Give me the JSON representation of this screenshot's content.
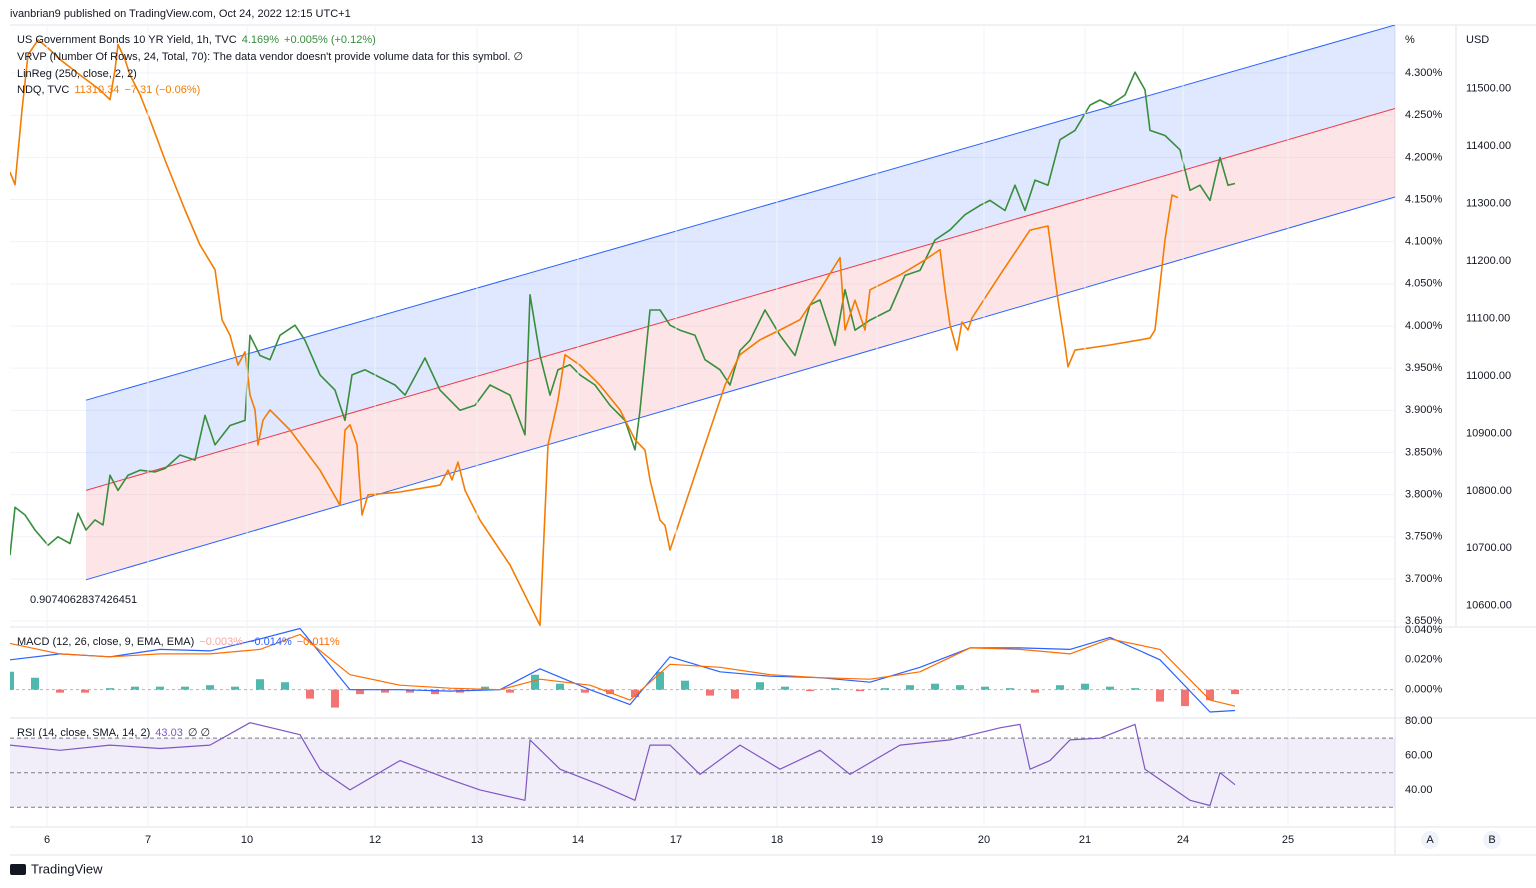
{
  "header": "ivanbrian9 published on TradingView.com, Oct 24, 2022 12:15 UTC+1",
  "footer": "TradingView",
  "buttons": [
    "A",
    "B"
  ],
  "chart_data": [
    {
      "type": "line",
      "xlim": [
        0,
        138.5
      ],
      "xticks": [
        {
          "value": 3.7,
          "label": "6"
        },
        {
          "value": 13.8,
          "label": "7"
        },
        {
          "value": 23.7,
          "label": "10"
        },
        {
          "value": 36.5,
          "label": "12"
        },
        {
          "value": 46.7,
          "label": "13"
        },
        {
          "value": 56.8,
          "label": "14"
        },
        {
          "value": 66.6,
          "label": "17"
        },
        {
          "value": 76.7,
          "label": "18"
        },
        {
          "value": 86.7,
          "label": "19"
        },
        {
          "value": 97.4,
          "label": "20"
        },
        {
          "value": 107.5,
          "label": "21"
        },
        {
          "value": 117.3,
          "label": "24"
        },
        {
          "value": 127.8,
          "label": "25"
        }
      ],
      "ylabel": "%",
      "ylim": [
        3.643,
        4.357
      ],
      "yticks": [
        {
          "value": 3.65,
          "label": "3.650%"
        },
        {
          "value": 3.7,
          "label": "3.700%"
        },
        {
          "value": 3.75,
          "label": "3.750%"
        },
        {
          "value": 3.8,
          "label": "3.800%"
        },
        {
          "value": 3.85,
          "label": "3.850%"
        },
        {
          "value": 3.9,
          "label": "3.900%"
        },
        {
          "value": 3.95,
          "label": "3.950%"
        },
        {
          "value": 4.0,
          "label": "4.000%"
        },
        {
          "value": 4.05,
          "label": "4.050%"
        },
        {
          "value": 4.1,
          "label": "4.100%"
        },
        {
          "value": 4.15,
          "label": "4.150%"
        },
        {
          "value": 4.2,
          "label": "4.200%"
        },
        {
          "value": 4.25,
          "label": "4.250%"
        },
        {
          "value": 4.3,
          "label": "4.300%"
        }
      ],
      "y2label": "USD",
      "y2lim": [
        10563,
        11611
      ],
      "y2ticks": [
        {
          "value": 10600,
          "label": "10600.00"
        },
        {
          "value": 10700,
          "label": "10700.00"
        },
        {
          "value": 10800,
          "label": "10800.00"
        },
        {
          "value": 10900,
          "label": "10900.00"
        },
        {
          "value": 11000,
          "label": "11000.00"
        },
        {
          "value": 11100,
          "label": "11100.00"
        },
        {
          "value": 11200,
          "label": "11200.00"
        },
        {
          "value": 11300,
          "label": "11300.00"
        },
        {
          "value": 11400,
          "label": "11400.00"
        },
        {
          "value": 11500,
          "label": "11500.00"
        }
      ],
      "grid": true,
      "annotations": [
        "VRVP (Number Of Rows, 24, Total, 70): The data vendor doesn't provide volume data for this symbol.  ∅",
        "0.9074062837426451"
      ],
      "regression": {
        "name": "LinReg (250, close, 2, 2)",
        "x": [
          7.6,
          138.5
        ],
        "upper": [
          3.912,
          4.357
        ],
        "middle": [
          3.805,
          4.258
        ],
        "lower": [
          3.699,
          4.153
        ],
        "band_color": "#2962ff",
        "mid_color": "#f23645"
      },
      "series": [
        {
          "name": "US Government Bonds 10 YR Yield, 1h, TVC",
          "last_label": "4.169%",
          "change_label": "+0.005% (+0.12%)",
          "color": "#388e3c",
          "axis": "y",
          "x": [
            0,
            0.5,
            1.5,
            2.5,
            3.8,
            4.8,
            6,
            6.8,
            7.6,
            8.5,
            9.3,
            10,
            10.8,
            11.8,
            13,
            14.5,
            15.5,
            17,
            18.5,
            19.5,
            20.5,
            22,
            23.5,
            24,
            25,
            26,
            27,
            28.5,
            29.5,
            31,
            32.5,
            33.5,
            34.2,
            35.5,
            36.5,
            37.5,
            38.5,
            39.5,
            41.5,
            43,
            45,
            46.5,
            48,
            50,
            51.5,
            52,
            53,
            54,
            54.8,
            56,
            57,
            58.5,
            60,
            61.5,
            62.5,
            63,
            64,
            65,
            66,
            67,
            68.5,
            69.5,
            71,
            72,
            73,
            74,
            75.5,
            77,
            78.5,
            80,
            81,
            82.5,
            83.5,
            84.5,
            86,
            88,
            89.5,
            91,
            92.5,
            94,
            95.5,
            97,
            98,
            99.5,
            100.5,
            101.5,
            102.5,
            103.8,
            105,
            106.5,
            108,
            109,
            110,
            111.5,
            112.5,
            113.5,
            114,
            115.5,
            117,
            118,
            119,
            120,
            121,
            121.8,
            122.5
          ],
          "values": [
            3.728,
            3.785,
            3.776,
            3.758,
            3.74,
            3.75,
            3.742,
            3.778,
            3.758,
            3.77,
            3.764,
            3.823,
            3.805,
            3.823,
            3.829,
            3.827,
            3.831,
            3.847,
            3.841,
            3.894,
            3.859,
            3.882,
            3.888,
            3.989,
            3.965,
            3.96,
            3.989,
            4.001,
            3.983,
            3.942,
            3.924,
            3.888,
            3.942,
            3.948,
            3.942,
            3.936,
            3.93,
            3.918,
            3.962,
            3.924,
            3.9,
            3.906,
            3.93,
            3.918,
            3.871,
            4.037,
            3.965,
            3.918,
            3.948,
            3.954,
            3.942,
            3.93,
            3.906,
            3.888,
            3.853,
            3.9,
            4.019,
            4.019,
            4.001,
            3.995,
            3.989,
            3.96,
            3.948,
            3.93,
            3.971,
            3.983,
            4.019,
            3.989,
            3.965,
            4.025,
            4.031,
            3.977,
            4.043,
            3.995,
            4.007,
            4.019,
            4.06,
            4.066,
            4.102,
            4.114,
            4.132,
            4.143,
            4.149,
            4.137,
            4.167,
            4.137,
            4.173,
            4.167,
            4.221,
            4.232,
            4.262,
            4.268,
            4.262,
            4.274,
            4.301,
            4.28,
            4.232,
            4.226,
            4.209,
            4.161,
            4.167,
            4.149,
            4.2,
            4.167,
            4.169
          ]
        },
        {
          "name": "NDQ, TVC",
          "last_label": "11310.34",
          "change_label": "−7.31 (−0.06%)",
          "color": "#f57c00",
          "axis": "y2",
          "x": [
            0,
            0.5,
            1.2,
            1.8,
            2.8,
            3.8,
            5,
            7,
            9,
            10,
            10.5,
            10.8,
            11.5,
            12,
            13,
            14,
            15.5,
            17.5,
            19,
            20.5,
            21.2,
            22,
            22.8,
            23.5,
            24,
            24.5,
            24.8,
            25.3,
            26,
            28,
            31,
            33,
            33.5,
            34,
            34.7,
            35.2,
            35.8,
            39,
            43,
            43.8,
            44.2,
            44.8,
            45.5,
            47,
            50,
            53,
            53.8,
            54.8,
            55.5,
            57,
            59,
            61,
            62.5,
            63.5,
            64,
            64.5,
            65,
            65.5,
            66,
            69,
            71.5,
            73,
            75,
            77,
            79,
            81,
            83,
            83.5,
            84.5,
            85.5,
            86,
            89,
            91.5,
            93,
            93.5,
            94,
            94.7,
            95.2,
            95.8,
            96.2,
            99,
            102,
            103.8,
            104.8,
            105.5,
            105.8,
            106.5,
            110,
            114,
            114.5,
            115.5,
            116.2,
            116.8
          ],
          "values": [
            11355,
            11333,
            11463,
            11559,
            11585,
            11571,
            11551,
            11524,
            11498,
            11481,
            11533,
            11577,
            11551,
            11524,
            11490,
            11446,
            11376,
            11289,
            11228,
            11185,
            11098,
            11071,
            11019,
            11042,
            10967,
            10941,
            10880,
            10923,
            10941,
            10906,
            10836,
            10775,
            10906,
            10915,
            10880,
            10758,
            10793,
            10798,
            10810,
            10836,
            10819,
            10850,
            10801,
            10749,
            10671,
            10566,
            10880,
            10958,
            11037,
            11019,
            10984,
            10941,
            10889,
            10871,
            10819,
            10784,
            10749,
            10740,
            10697,
            10854,
            10984,
            11037,
            11063,
            11080,
            11098,
            11150,
            11206,
            11080,
            11132,
            11080,
            11150,
            11176,
            11202,
            11220,
            11150,
            11089,
            11045,
            11094,
            11080,
            11101,
            11176,
            11254,
            11261,
            11132,
            11054,
            11016,
            11045,
            11054,
            11066,
            11080,
            11237,
            11315,
            11310.34
          ]
        }
      ]
    },
    {
      "type": "macd",
      "title": "MACD (12, 26, close, 9, EMA, EMA)",
      "xlim": [
        0,
        138.5
      ],
      "ylim": [
        -0.019,
        0.042
      ],
      "yticks": [
        {
          "value": 0,
          "label": "0.000%"
        },
        {
          "value": 0.02,
          "label": "0.020%"
        },
        {
          "value": 0.04,
          "label": "0.040%"
        }
      ],
      "histogram": {
        "value_label": "−0.003%",
        "label_color": "#f7a5a5",
        "up_color": "#26a69a",
        "down_color": "#ef5350",
        "x": [
          0,
          2.5,
          5,
          7.5,
          10,
          12.5,
          15,
          17.5,
          20,
          22.5,
          25,
          27.5,
          30,
          32.5,
          35,
          37.5,
          40,
          42.5,
          45,
          47.5,
          50,
          52.5,
          55,
          57.5,
          60,
          62.5,
          65,
          67.5,
          70,
          72.5,
          75,
          77.5,
          80,
          82.5,
          85,
          87.5,
          90,
          92.5,
          95,
          97.5,
          100,
          102.5,
          105,
          107.5,
          110,
          112.5,
          115,
          117.5,
          120,
          122.5
        ],
        "values": [
          0.012,
          0.008,
          -0.002,
          -0.002,
          0.001,
          0.002,
          0.002,
          0.002,
          0.003,
          0.002,
          0.007,
          0.005,
          -0.006,
          -0.012,
          -0.003,
          -0.002,
          -0.002,
          -0.003,
          -0.002,
          0.002,
          -0.002,
          0.01,
          0.004,
          -0.002,
          -0.003,
          -0.005,
          0.012,
          0.006,
          -0.004,
          -0.006,
          0.005,
          0.002,
          -0.001,
          0.001,
          -0.001,
          0.001,
          0.003,
          0.004,
          0.003,
          0.002,
          0.001,
          -0.002,
          0.003,
          0.004,
          0.002,
          0.001,
          -0.008,
          -0.011,
          -0.007,
          -0.003
        ]
      },
      "series": [
        {
          "value_label": "−0.014%",
          "color": "#2962ff",
          "x": [
            0,
            5,
            10,
            15,
            20,
            25,
            29,
            34,
            39,
            44,
            49,
            53,
            58,
            62,
            66,
            71,
            76,
            81,
            86,
            91,
            96,
            101,
            106,
            110,
            115,
            120,
            122.5
          ],
          "values": [
            0.02,
            0.024,
            0.022,
            0.027,
            0.026,
            0.034,
            0.041,
            0.0,
            0.0,
            -0.001,
            0,
            0.014,
            0,
            -0.01,
            0.022,
            0.012,
            0.009,
            0.008,
            0.005,
            0.015,
            0.028,
            0.028,
            0.027,
            0.035,
            0.02,
            -0.015,
            -0.014
          ]
        },
        {
          "value_label": "−0.011%",
          "color": "#ff6d00",
          "x": [
            0,
            5,
            10,
            15,
            20,
            25,
            29,
            34,
            39,
            44,
            49,
            53,
            58,
            62,
            66,
            71,
            76,
            81,
            86,
            91,
            96,
            101,
            106,
            110,
            115,
            120,
            122.5
          ],
          "values": [
            0.031,
            0.024,
            0.022,
            0.024,
            0.024,
            0.027,
            0.037,
            0.01,
            0.003,
            0.001,
            0,
            0.007,
            0.003,
            -0.007,
            0.017,
            0.015,
            0.01,
            0.008,
            0.007,
            0.012,
            0.028,
            0.027,
            0.024,
            0.034,
            0.027,
            -0.007,
            -0.011
          ]
        }
      ]
    },
    {
      "type": "rsi",
      "title": "RSI (14, close, SMA, 14, 2)",
      "status": "∅  ∅",
      "xlim": [
        0,
        138.5
      ],
      "ylim": [
        19.1,
        81.7
      ],
      "yticks": [
        {
          "value": 40,
          "label": "40.00"
        },
        {
          "value": 60,
          "label": "60.00"
        },
        {
          "value": 80,
          "label": "80.00"
        }
      ],
      "band": [
        30,
        70
      ],
      "levels": [
        30,
        50,
        70
      ],
      "series": [
        {
          "value_label": "43.03",
          "color": "#7e57c2",
          "x": [
            0,
            5,
            10,
            15,
            20,
            24,
            29,
            31,
            34,
            39,
            44,
            47,
            51.5,
            52,
            55,
            59,
            62.5,
            64,
            66,
            69,
            73,
            77,
            81,
            84,
            89,
            94,
            99,
            101,
            102,
            104,
            106,
            109,
            112.5,
            113.5,
            118,
            120,
            121,
            122.5
          ],
          "values": [
            66,
            63,
            66,
            64,
            66,
            79,
            72,
            52,
            40,
            57,
            46,
            40,
            34,
            69,
            52,
            43,
            34,
            66,
            66,
            49,
            66,
            52,
            63,
            49,
            66,
            69,
            76,
            78,
            52,
            57,
            69,
            70,
            78,
            52,
            34,
            31,
            50,
            43.03
          ]
        }
      ]
    }
  ]
}
